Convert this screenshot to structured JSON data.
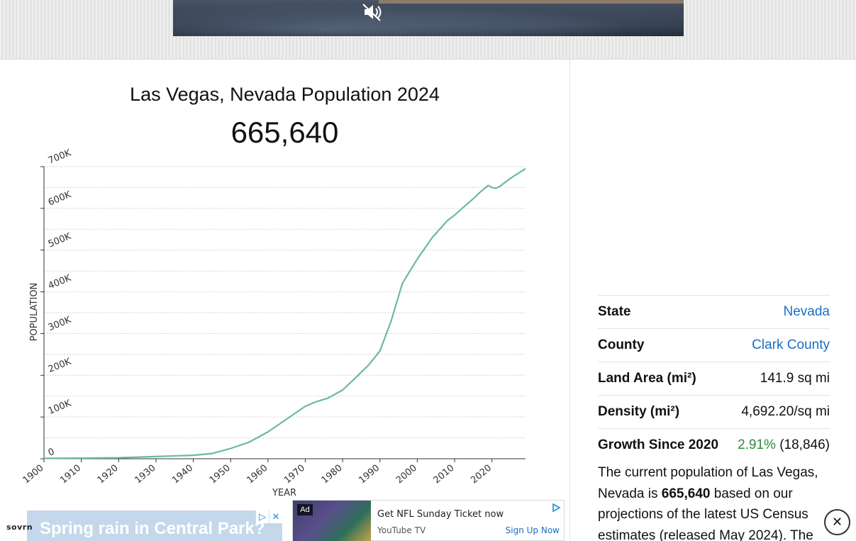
{
  "video_ad": {
    "progress": 0.78,
    "mute_icon": "speaker-muted-icon"
  },
  "chart": {
    "title": "Las Vegas, Nevada Population 2024",
    "population_big": "665,640"
  },
  "chart_data": {
    "type": "line",
    "title": "Las Vegas, Nevada Population 2024",
    "xlabel": "YEAR",
    "ylabel": "POPULATION",
    "xlim": [
      1900,
      2029
    ],
    "ylim": [
      0,
      700000
    ],
    "yticks": [
      0,
      100000,
      200000,
      300000,
      400000,
      500000,
      600000,
      700000
    ],
    "ytick_labels": [
      "0",
      "100K",
      "200K",
      "300K",
      "400K",
      "500K",
      "600K",
      "700K"
    ],
    "xticks": [
      1900,
      1910,
      1920,
      1930,
      1940,
      1950,
      1960,
      1970,
      1980,
      1990,
      2000,
      2010,
      2020
    ],
    "grid": true,
    "line_color": "#6cb8a3",
    "x": [
      1900,
      1910,
      1920,
      1930,
      1940,
      1945,
      1950,
      1955,
      1960,
      1965,
      1970,
      1973,
      1976,
      1980,
      1983,
      1987,
      1990,
      1993,
      1996,
      2000,
      2004,
      2008,
      2010,
      2012,
      2015,
      2017,
      2019,
      2020,
      2021,
      2022,
      2024,
      2026,
      2029
    ],
    "y": [
      1000,
      1500,
      2300,
      5200,
      8400,
      12500,
      24600,
      40000,
      64400,
      95000,
      125800,
      137000,
      145000,
      164700,
      190000,
      225000,
      258300,
      330000,
      420000,
      478400,
      530000,
      570000,
      583800,
      600000,
      623000,
      640000,
      655000,
      650000,
      648000,
      652000,
      665640,
      678000,
      695000
    ],
    "series": [
      {
        "name": "",
        "color": "#6cb8a3"
      }
    ]
  },
  "info": {
    "rows": [
      {
        "key": "State",
        "value": "Nevada"
      },
      {
        "key": "County",
        "value": "Clark County"
      },
      {
        "key": "Land Area (mi²)",
        "value": "141.9 sq mi"
      },
      {
        "key": "Density (mi²)",
        "value": "4,692.20/sq mi"
      },
      {
        "key": "Growth Since 2020",
        "value": "2.91%",
        "value_extra": "(18,846)"
      }
    ]
  },
  "paragraph": {
    "before": "The current population of Las Vegas, Nevada is ",
    "bold": "665,640",
    "after": " based on our projections of the latest US Census estimates (released May 2024). The"
  },
  "ads": {
    "left_headline": "Spring rain in Central Park?",
    "left_icons": [
      "adchoices-icon",
      "close-icon"
    ],
    "brand": "sovrn",
    "mid_badge": "Ad",
    "mid_title": "Get NFL Sunday Ticket now",
    "mid_sub": "YouTube TV",
    "mid_cta": "Sign Up Now",
    "close_glyph": "✕"
  }
}
